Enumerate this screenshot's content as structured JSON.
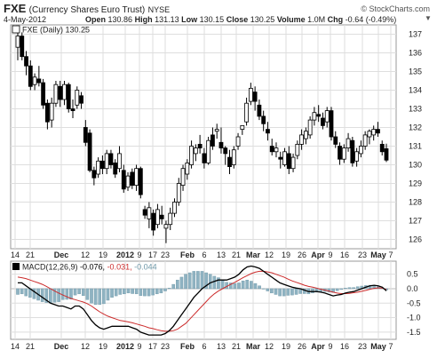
{
  "header": {
    "symbol": "FXE",
    "name": "(Currency Shares Euro Trust)",
    "exchange": "NYSE",
    "source": "© StockCharts.com",
    "date": "4-May-2012",
    "open_label": "Open",
    "open": "130.86",
    "high_label": "High",
    "high": "131.13",
    "low_label": "Low",
    "low": "130.15",
    "close_label": "Close",
    "close": "130.25",
    "volume_label": "Volume",
    "volume": "1.0M",
    "chg_label": "Chg",
    "chg": "-0.64 (-0.49%)",
    "chg_arrow": "▼"
  },
  "colors": {
    "panel_bg": "#ffffff",
    "grid": "#dedede",
    "up_candle": "#ffffff",
    "down_candle": "#000000",
    "macd_line": "#000000",
    "signal_line": "#cc2b2b",
    "histogram": "#8fb3c2",
    "macd_value": "#000000",
    "signal_value": "#cc2b2b",
    "hist_value": "#6f98a8"
  },
  "chart_data": [
    {
      "type": "candlestick",
      "title": "FXE (Daily) 130.25",
      "legend_text": "FXE (Daily) 130.25",
      "ylim": [
        125.5,
        137.5
      ],
      "y_ticks": [
        126,
        127,
        128,
        129,
        130,
        131,
        132,
        133,
        134,
        135,
        136,
        137
      ],
      "x_ticks": [
        "14",
        "21",
        "Dec",
        "12",
        "19",
        "2012",
        "9",
        "17",
        "23",
        "Feb",
        "6",
        "13",
        "21",
        "Mar",
        "12",
        "19",
        "26",
        "Apr",
        "9",
        "16",
        "23",
        "May",
        "7"
      ],
      "grid": true,
      "candles": [
        {
          "o": 136.3,
          "h": 137.2,
          "l": 135.6,
          "c": 136.9
        },
        {
          "o": 136.9,
          "h": 137.1,
          "l": 135.6,
          "c": 135.8
        },
        {
          "o": 135.8,
          "h": 136.1,
          "l": 134.8,
          "c": 135.3
        },
        {
          "o": 135.3,
          "h": 135.6,
          "l": 134.0,
          "c": 134.2
        },
        {
          "o": 134.3,
          "h": 134.9,
          "l": 134.0,
          "c": 134.7
        },
        {
          "o": 134.6,
          "h": 135.3,
          "l": 134.2,
          "c": 134.4
        },
        {
          "o": 134.4,
          "h": 134.6,
          "l": 133.0,
          "c": 133.2
        },
        {
          "o": 133.3,
          "h": 133.5,
          "l": 131.9,
          "c": 132.3
        },
        {
          "o": 132.4,
          "h": 133.6,
          "l": 132.0,
          "c": 133.3
        },
        {
          "o": 133.3,
          "h": 134.5,
          "l": 133.1,
          "c": 134.3
        },
        {
          "o": 134.2,
          "h": 134.5,
          "l": 133.1,
          "c": 133.5
        },
        {
          "o": 133.5,
          "h": 134.5,
          "l": 133.2,
          "c": 134.3
        },
        {
          "o": 134.3,
          "h": 134.4,
          "l": 132.8,
          "c": 133.0
        },
        {
          "o": 133.0,
          "h": 133.5,
          "l": 132.5,
          "c": 132.9
        },
        {
          "o": 133.2,
          "h": 134.2,
          "l": 133.0,
          "c": 134.0
        },
        {
          "o": 133.7,
          "h": 133.9,
          "l": 133.0,
          "c": 133.3
        },
        {
          "o": 132.0,
          "h": 132.4,
          "l": 131.0,
          "c": 131.2
        },
        {
          "o": 131.7,
          "h": 131.9,
          "l": 129.6,
          "c": 129.7
        },
        {
          "o": 129.7,
          "h": 129.9,
          "l": 128.9,
          "c": 129.3
        },
        {
          "o": 129.5,
          "h": 130.4,
          "l": 129.3,
          "c": 130.2
        },
        {
          "o": 130.2,
          "h": 130.5,
          "l": 129.5,
          "c": 129.8
        },
        {
          "o": 129.8,
          "h": 130.8,
          "l": 129.5,
          "c": 130.6
        },
        {
          "o": 130.6,
          "h": 130.8,
          "l": 129.8,
          "c": 130.0
        },
        {
          "o": 130.1,
          "h": 130.3,
          "l": 129.3,
          "c": 129.5
        },
        {
          "o": 129.8,
          "h": 131.0,
          "l": 129.6,
          "c": 130.6
        },
        {
          "o": 129.7,
          "h": 130.0,
          "l": 128.5,
          "c": 128.7
        },
        {
          "o": 128.8,
          "h": 129.6,
          "l": 128.6,
          "c": 129.4
        },
        {
          "o": 129.6,
          "h": 129.8,
          "l": 128.7,
          "c": 128.9
        },
        {
          "o": 128.9,
          "h": 130.0,
          "l": 128.6,
          "c": 129.8
        },
        {
          "o": 129.8,
          "h": 129.9,
          "l": 128.2,
          "c": 128.4
        },
        {
          "o": 127.6,
          "h": 127.8,
          "l": 127.1,
          "c": 127.3
        },
        {
          "o": 127.1,
          "h": 128.0,
          "l": 126.6,
          "c": 127.7
        },
        {
          "o": 127.4,
          "h": 127.6,
          "l": 126.2,
          "c": 126.5
        },
        {
          "o": 126.8,
          "h": 127.9,
          "l": 126.6,
          "c": 127.6
        },
        {
          "o": 127.3,
          "h": 127.8,
          "l": 126.8,
          "c": 127.1
        },
        {
          "o": 126.6,
          "h": 127.0,
          "l": 125.8,
          "c": 126.8
        },
        {
          "o": 126.8,
          "h": 127.7,
          "l": 126.5,
          "c": 127.4
        },
        {
          "o": 127.4,
          "h": 128.2,
          "l": 127.2,
          "c": 128.0
        },
        {
          "o": 128.0,
          "h": 129.3,
          "l": 127.8,
          "c": 129.0
        },
        {
          "o": 128.9,
          "h": 130.0,
          "l": 128.6,
          "c": 129.8
        },
        {
          "o": 129.5,
          "h": 130.3,
          "l": 129.2,
          "c": 130.1
        },
        {
          "o": 130.0,
          "h": 131.3,
          "l": 129.8,
          "c": 131.0
        },
        {
          "o": 130.6,
          "h": 131.1,
          "l": 130.2,
          "c": 130.9
        },
        {
          "o": 131.1,
          "h": 131.6,
          "l": 130.6,
          "c": 130.9
        },
        {
          "o": 130.6,
          "h": 130.9,
          "l": 129.8,
          "c": 130.1
        },
        {
          "o": 130.1,
          "h": 131.5,
          "l": 130.0,
          "c": 131.3
        },
        {
          "o": 131.6,
          "h": 132.0,
          "l": 130.8,
          "c": 131.0
        },
        {
          "o": 131.8,
          "h": 132.2,
          "l": 131.4,
          "c": 131.9
        },
        {
          "o": 131.2,
          "h": 132.0,
          "l": 130.6,
          "c": 130.9
        },
        {
          "o": 130.9,
          "h": 131.0,
          "l": 130.0,
          "c": 130.6
        },
        {
          "o": 130.4,
          "h": 130.8,
          "l": 129.5,
          "c": 129.9
        },
        {
          "o": 130.0,
          "h": 131.0,
          "l": 129.8,
          "c": 130.8
        },
        {
          "o": 131.0,
          "h": 131.7,
          "l": 130.8,
          "c": 131.5
        },
        {
          "o": 131.9,
          "h": 132.1,
          "l": 131.6,
          "c": 132.1
        },
        {
          "o": 132.3,
          "h": 133.6,
          "l": 132.1,
          "c": 133.3
        },
        {
          "o": 133.4,
          "h": 134.4,
          "l": 133.2,
          "c": 134.1
        },
        {
          "o": 133.9,
          "h": 134.2,
          "l": 132.9,
          "c": 133.4
        },
        {
          "o": 133.2,
          "h": 133.5,
          "l": 132.4,
          "c": 132.6
        },
        {
          "o": 132.6,
          "h": 132.9,
          "l": 131.8,
          "c": 132.2
        },
        {
          "o": 131.9,
          "h": 132.3,
          "l": 131.3,
          "c": 131.7
        },
        {
          "o": 131.0,
          "h": 131.4,
          "l": 130.5,
          "c": 130.7
        },
        {
          "o": 130.7,
          "h": 131.2,
          "l": 130.4,
          "c": 130.9
        },
        {
          "o": 130.4,
          "h": 130.7,
          "l": 129.8,
          "c": 130.3
        },
        {
          "o": 130.0,
          "h": 130.9,
          "l": 129.9,
          "c": 130.7
        },
        {
          "o": 130.6,
          "h": 131.0,
          "l": 129.5,
          "c": 129.8
        },
        {
          "o": 129.8,
          "h": 130.6,
          "l": 129.6,
          "c": 130.4
        },
        {
          "o": 130.5,
          "h": 131.3,
          "l": 130.3,
          "c": 131.1
        },
        {
          "o": 131.1,
          "h": 131.9,
          "l": 130.8,
          "c": 131.6
        },
        {
          "o": 131.4,
          "h": 132.0,
          "l": 131.1,
          "c": 131.8
        },
        {
          "o": 131.6,
          "h": 132.6,
          "l": 131.4,
          "c": 132.4
        },
        {
          "o": 132.4,
          "h": 133.1,
          "l": 132.1,
          "c": 132.8
        },
        {
          "o": 132.7,
          "h": 133.2,
          "l": 132.3,
          "c": 132.6
        },
        {
          "o": 132.5,
          "h": 132.8,
          "l": 131.9,
          "c": 132.1
        },
        {
          "o": 132.3,
          "h": 133.1,
          "l": 132.0,
          "c": 132.9
        },
        {
          "o": 132.9,
          "h": 133.1,
          "l": 131.3,
          "c": 131.5
        },
        {
          "o": 131.5,
          "h": 131.8,
          "l": 130.9,
          "c": 131.1
        },
        {
          "o": 131.0,
          "h": 131.2,
          "l": 130.0,
          "c": 130.3
        },
        {
          "o": 130.3,
          "h": 131.1,
          "l": 130.1,
          "c": 130.9
        },
        {
          "o": 130.9,
          "h": 131.7,
          "l": 130.7,
          "c": 131.4
        },
        {
          "o": 131.3,
          "h": 131.5,
          "l": 129.9,
          "c": 130.1
        },
        {
          "o": 130.2,
          "h": 130.9,
          "l": 129.9,
          "c": 130.7
        },
        {
          "o": 130.6,
          "h": 131.3,
          "l": 130.4,
          "c": 131.0
        },
        {
          "o": 131.0,
          "h": 131.8,
          "l": 130.8,
          "c": 131.6
        },
        {
          "o": 131.5,
          "h": 131.9,
          "l": 131.1,
          "c": 131.8
        },
        {
          "o": 131.6,
          "h": 132.1,
          "l": 131.3,
          "c": 131.9
        },
        {
          "o": 131.9,
          "h": 132.3,
          "l": 131.5,
          "c": 131.7
        },
        {
          "o": 131.1,
          "h": 131.3,
          "l": 130.5,
          "c": 130.7
        },
        {
          "o": 130.86,
          "h": 131.13,
          "l": 130.15,
          "c": 130.25
        }
      ]
    },
    {
      "type": "line",
      "title": "MACD(12,26,9)",
      "legend_text": "MACD(12,26,9)",
      "values_text": {
        "macd": "-0.076,",
        "signal": "-0.031,",
        "hist": "-0.044"
      },
      "ylim": [
        -1.75,
        0.95
      ],
      "y_ticks": [
        0.5,
        0.0,
        -0.5,
        -1.0,
        -1.5
      ],
      "y_tick_labels": [
        "0.5",
        "0.0",
        "-0.5",
        "-1.0",
        "-1.5"
      ],
      "x_ticks": [
        "14",
        "21",
        "Dec",
        "12",
        "19",
        "2012",
        "9",
        "17",
        "23",
        "Feb",
        "6",
        "13",
        "21",
        "Mar",
        "12",
        "19",
        "26",
        "Apr",
        "9",
        "16",
        "23",
        "May",
        "7"
      ],
      "grid": true,
      "series": [
        {
          "key": "macd",
          "values": [
            0.2,
            0.2,
            0.1,
            0.0,
            -0.1,
            -0.2,
            -0.3,
            -0.4,
            -0.5,
            -0.55,
            -0.6,
            -0.6,
            -0.65,
            -0.7,
            -0.6,
            -0.6,
            -0.7,
            -0.9,
            -1.1,
            -1.25,
            -1.35,
            -1.4,
            -1.35,
            -1.3,
            -1.3,
            -1.3,
            -1.3,
            -1.3,
            -1.35,
            -1.4,
            -1.5,
            -1.55,
            -1.6,
            -1.6,
            -1.6,
            -1.6,
            -1.55,
            -1.45,
            -1.3,
            -1.1,
            -0.9,
            -0.7,
            -0.5,
            -0.3,
            -0.15,
            0.0,
            0.1,
            0.2,
            0.25,
            0.3,
            0.3,
            0.3,
            0.35,
            0.4,
            0.5,
            0.65,
            0.75,
            0.78,
            0.75,
            0.7,
            0.6,
            0.5,
            0.4,
            0.3,
            0.2,
            0.15,
            0.1,
            0.05,
            0.02,
            0.0,
            -0.05,
            -0.1,
            -0.1,
            -0.1,
            -0.12,
            -0.15,
            -0.2,
            -0.25,
            -0.22,
            -0.2,
            -0.15,
            -0.12,
            -0.1,
            -0.05,
            0.0,
            0.05,
            0.1,
            0.12,
            0.1,
            0.05,
            -0.076
          ]
        },
        {
          "key": "signal",
          "values": [
            0.4,
            0.38,
            0.35,
            0.3,
            0.25,
            0.2,
            0.15,
            0.08,
            0.0,
            -0.08,
            -0.15,
            -0.22,
            -0.28,
            -0.34,
            -0.38,
            -0.42,
            -0.46,
            -0.52,
            -0.6,
            -0.7,
            -0.8,
            -0.88,
            -0.95,
            -1.0,
            -1.05,
            -1.1,
            -1.12,
            -1.15,
            -1.18,
            -1.22,
            -1.26,
            -1.3,
            -1.35,
            -1.38,
            -1.42,
            -1.45,
            -1.47,
            -1.47,
            -1.45,
            -1.4,
            -1.3,
            -1.2,
            -1.05,
            -0.9,
            -0.75,
            -0.6,
            -0.45,
            -0.3,
            -0.18,
            -0.08,
            0.0,
            0.08,
            0.15,
            0.22,
            0.3,
            0.38,
            0.45,
            0.52,
            0.57,
            0.6,
            0.6,
            0.58,
            0.55,
            0.5,
            0.45,
            0.4,
            0.33,
            0.27,
            0.22,
            0.17,
            0.12,
            0.08,
            0.05,
            0.02,
            -0.02,
            -0.05,
            -0.08,
            -0.12,
            -0.15,
            -0.17,
            -0.17,
            -0.16,
            -0.14,
            -0.12,
            -0.09,
            -0.06,
            -0.02,
            0.01,
            0.03,
            0.02,
            -0.031
          ]
        }
      ]
    }
  ]
}
